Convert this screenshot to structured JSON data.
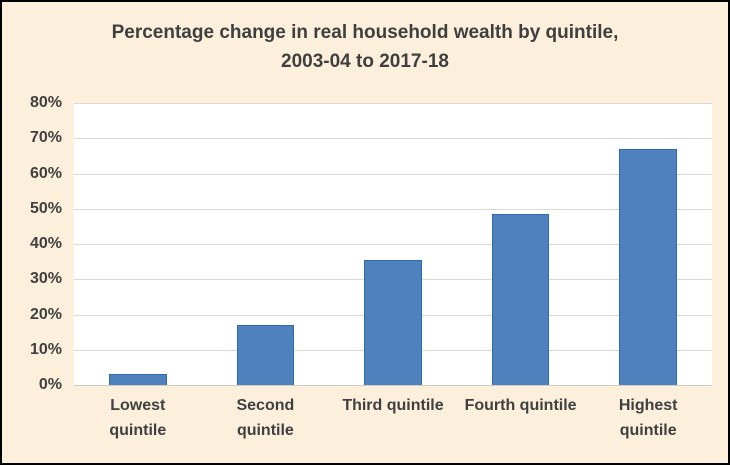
{
  "chart_data": {
    "type": "bar",
    "title": "Percentage change in real household wealth by quintile, 2003-04 to 2017-18",
    "categories": [
      "Lowest quintile",
      "Second quintile",
      "Third quintile",
      "Fourth quintile",
      "Highest quintile"
    ],
    "values": [
      3,
      17,
      35.5,
      48.5,
      67
    ],
    "xlabel": "",
    "ylabel": "",
    "ylim": [
      0,
      80
    ],
    "yticks": [
      0,
      10,
      20,
      30,
      40,
      50,
      60,
      70,
      80
    ],
    "ytick_suffix": "%",
    "grid": true,
    "legend": false,
    "colors": {
      "background": "#fcf0dc",
      "plot_background": "#ffffff",
      "gridline": "#d9d9d9",
      "axis_line": "#cfccc5",
      "bar_fill": "#4e81bd",
      "bar_border": "#2c6bb2",
      "text": "#404040",
      "title_text": "#3f3f3f",
      "frame_border": "#000000"
    }
  }
}
